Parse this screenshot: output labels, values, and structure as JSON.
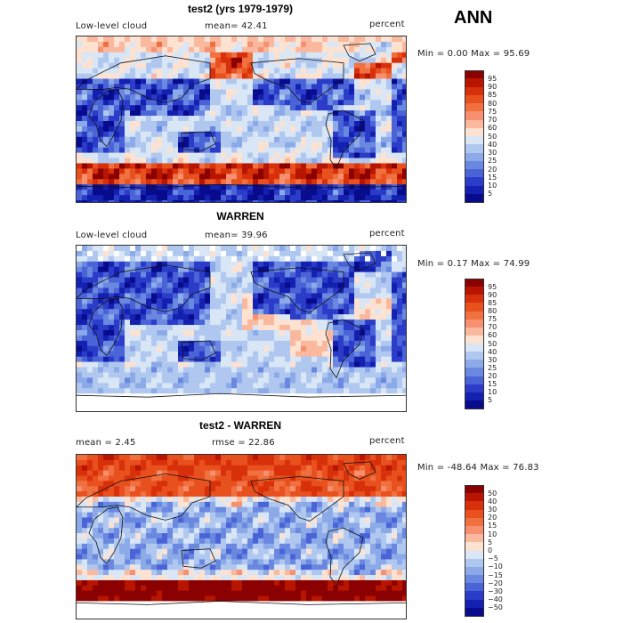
{
  "season": "ANN",
  "panels": [
    {
      "title": "test2 (yrs 1979-1979)",
      "left_label": "Low-level cloud",
      "mid_label": "mean=  42.41",
      "right_label": "percent",
      "minmax": "Min =   0.00 Max =  95.69",
      "colorbar": {
        "labels": [
          "95",
          "90",
          "85",
          "80",
          "75",
          "70",
          "60",
          "50",
          "40",
          "30",
          "25",
          "20",
          "15",
          "10",
          "5"
        ],
        "colors": [
          "#8b0000",
          "#b81500",
          "#d8300a",
          "#e8501e",
          "#f07040",
          "#f69070",
          "#fab89e",
          "#fde2d2",
          "#d8e6f6",
          "#b0c8f0",
          "#8caae8",
          "#6a88e0",
          "#4a64d8",
          "#2a3cc8",
          "#1420b0",
          "#080c8c"
        ]
      },
      "map_type": "total"
    },
    {
      "title": "WARREN",
      "left_label": "Low-level cloud",
      "mid_label": "mean=  39.96",
      "right_label": "percent",
      "minmax": "Min =   0.17 Max =  74.99",
      "colorbar": {
        "labels": [
          "95",
          "90",
          "85",
          "80",
          "75",
          "70",
          "60",
          "50",
          "40",
          "30",
          "25",
          "20",
          "15",
          "10",
          "5"
        ],
        "colors": [
          "#8b0000",
          "#b81500",
          "#d8300a",
          "#e8501e",
          "#f07040",
          "#f69070",
          "#fab89e",
          "#fde2d2",
          "#d8e6f6",
          "#b0c8f0",
          "#8caae8",
          "#6a88e0",
          "#4a64d8",
          "#2a3cc8",
          "#1420b0",
          "#080c8c"
        ]
      },
      "map_type": "obs"
    },
    {
      "title": "test2 - WARREN",
      "left_label": "mean =    2.45",
      "mid_label": "rmse =  22.86",
      "right_label": "percent",
      "minmax": "Min = -48.64 Max =  76.83",
      "colorbar": {
        "labels": [
          "50",
          "40",
          "30",
          "20",
          "15",
          "10",
          "5",
          "0",
          "−5",
          "−10",
          "−15",
          "−20",
          "−30",
          "−40",
          "−50"
        ],
        "colors": [
          "#8b0000",
          "#b81500",
          "#d8300a",
          "#e8501e",
          "#f07040",
          "#f69070",
          "#fab89e",
          "#fde2d2",
          "#d8e6f6",
          "#b0c8f0",
          "#8caae8",
          "#6a88e0",
          "#4a64d8",
          "#2a3cc8",
          "#1420b0",
          "#080c8c"
        ]
      },
      "map_type": "diff"
    }
  ]
}
